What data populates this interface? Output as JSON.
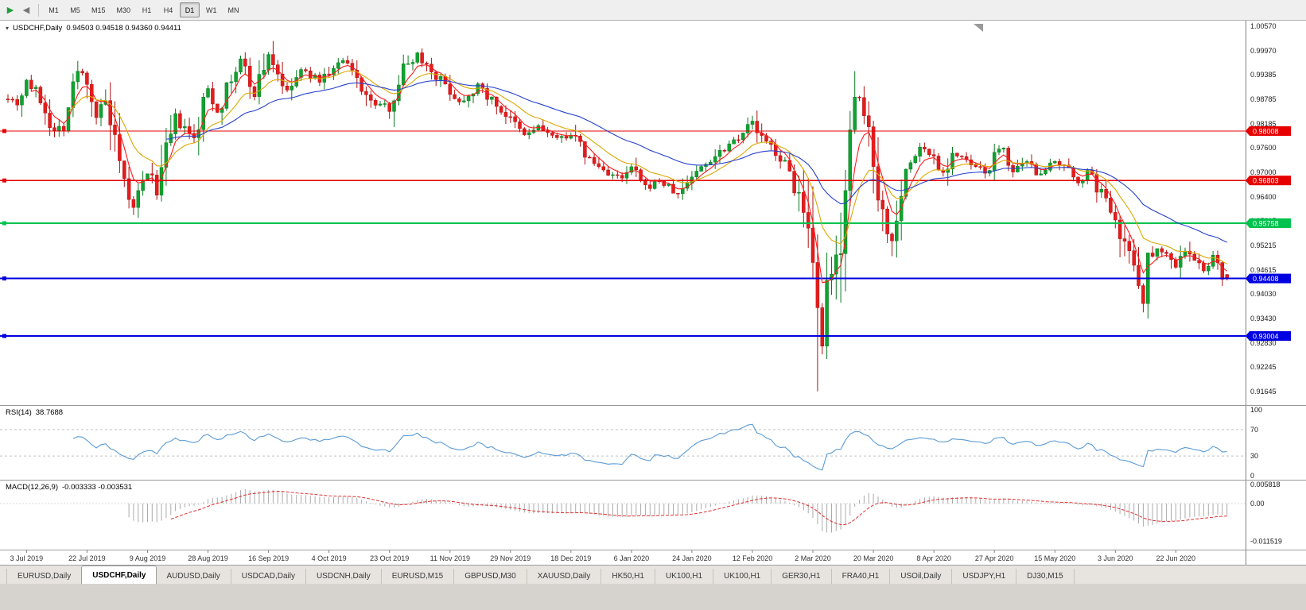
{
  "toolbar": {
    "timeframes": [
      {
        "label": "M1",
        "active": false
      },
      {
        "label": "M5",
        "active": false
      },
      {
        "label": "M15",
        "active": false
      },
      {
        "label": "M30",
        "active": false
      },
      {
        "label": "H1",
        "active": false
      },
      {
        "label": "H4",
        "active": false
      },
      {
        "label": "D1",
        "active": true
      },
      {
        "label": "W1",
        "active": false
      },
      {
        "label": "MN",
        "active": false
      }
    ]
  },
  "icons": {
    "chart_menu": "▾",
    "auto_scroll": "▶",
    "chart_shift": "◀"
  },
  "chart": {
    "header": "USDCHF,Daily",
    "ohlc_text": "0.94503 0.94518 0.94360 0.94411"
  },
  "rsi_panel": {
    "label": "RSI(14)",
    "value": "38.7688"
  },
  "macd_panel": {
    "label": "MACD(12,26,9)",
    "values": "-0.003333 -0.003531"
  },
  "tabs": [
    {
      "label": "EURUSD,Daily",
      "active": false
    },
    {
      "label": "USDCHF,Daily",
      "active": true
    },
    {
      "label": "AUDUSD,Daily",
      "active": false
    },
    {
      "label": "USDCAD,Daily",
      "active": false
    },
    {
      "label": "USDCNH,Daily",
      "active": false
    },
    {
      "label": "EURUSD,M15",
      "active": false
    },
    {
      "label": "GBPUSD,M30",
      "active": false
    },
    {
      "label": "XAUUSD,Daily",
      "active": false
    },
    {
      "label": "HK50,H1",
      "active": false
    },
    {
      "label": "UK100,H1",
      "active": false
    },
    {
      "label": "UK100,H1",
      "active": false
    },
    {
      "label": "GER30,H1",
      "active": false
    },
    {
      "label": "FRA40,H1",
      "active": false
    },
    {
      "label": "USOil,Daily",
      "active": false
    },
    {
      "label": "USDJPY,H1",
      "active": false
    },
    {
      "label": "DJ30,M15",
      "active": false
    }
  ],
  "chart_data": {
    "type": "candlestick",
    "symbol": "USDCHF",
    "period": "Daily",
    "bars": 263,
    "last_bar": {
      "open": 0.94503,
      "high": 0.94518,
      "low": 0.9436,
      "close": 0.94411
    },
    "up_color": "#0fa32f",
    "up_stroke": "#0a7a22",
    "down_color": "#e51c1c",
    "down_stroke": "#b01010",
    "close_path": [
      [
        0,
        0.9885
      ],
      [
        2,
        0.987
      ],
      [
        4,
        0.9925
      ],
      [
        7,
        0.988
      ],
      [
        10,
        0.98
      ],
      [
        12,
        0.982
      ],
      [
        15,
        0.9948
      ],
      [
        17,
        0.993
      ],
      [
        19,
        0.9838
      ],
      [
        21,
        0.987
      ],
      [
        24,
        0.97
      ],
      [
        27,
        0.9612
      ],
      [
        30,
        0.97
      ],
      [
        32,
        0.9655
      ],
      [
        36,
        0.983
      ],
      [
        40,
        0.9778
      ],
      [
        43,
        0.9905
      ],
      [
        45,
        0.985
      ],
      [
        50,
        0.9975
      ],
      [
        53,
        0.989
      ],
      [
        56,
        0.999
      ],
      [
        60,
        0.9895
      ],
      [
        63,
        0.9948
      ],
      [
        67,
        0.9925
      ],
      [
        72,
        0.9972
      ],
      [
        75,
        0.993
      ],
      [
        78,
        0.9868
      ],
      [
        82,
        0.9862
      ],
      [
        85,
        0.9955
      ],
      [
        88,
        0.999
      ],
      [
        91,
        0.995
      ],
      [
        95,
        0.99
      ],
      [
        97,
        0.9872
      ],
      [
        101,
        0.9912
      ],
      [
        106,
        0.9852
      ],
      [
        111,
        0.979
      ],
      [
        114,
        0.9812
      ],
      [
        118,
        0.978
      ],
      [
        121,
        0.9795
      ],
      [
        125,
        0.973
      ],
      [
        128,
        0.9705
      ],
      [
        132,
        0.9682
      ],
      [
        134,
        0.9712
      ],
      [
        137,
        0.9662
      ],
      [
        140,
        0.968
      ],
      [
        144,
        0.9645
      ],
      [
        147,
        0.9692
      ],
      [
        150,
        0.9722
      ],
      [
        154,
        0.9762
      ],
      [
        157,
        0.979
      ],
      [
        160,
        0.9822
      ],
      [
        162,
        0.9782
      ],
      [
        165,
        0.9752
      ],
      [
        168,
        0.97
      ],
      [
        170,
        0.964
      ],
      [
        172,
        0.952
      ],
      [
        174,
        0.933
      ],
      [
        175,
        0.928
      ],
      [
        176,
        0.939
      ],
      [
        178,
        0.948
      ],
      [
        179,
        0.956
      ],
      [
        180,
        0.97
      ],
      [
        182,
        0.9852
      ],
      [
        183,
        0.988
      ],
      [
        185,
        0.98
      ],
      [
        186,
        0.9748
      ],
      [
        188,
        0.96
      ],
      [
        190,
        0.9528
      ],
      [
        191,
        0.962
      ],
      [
        193,
        0.97
      ],
      [
        196,
        0.9762
      ],
      [
        199,
        0.9738
      ],
      [
        201,
        0.97
      ],
      [
        203,
        0.9748
      ],
      [
        207,
        0.9718
      ],
      [
        210,
        0.9698
      ],
      [
        212,
        0.9738
      ],
      [
        214,
        0.9762
      ],
      [
        216,
        0.97
      ],
      [
        219,
        0.9722
      ],
      [
        221,
        0.9698
      ],
      [
        225,
        0.9722
      ],
      [
        227,
        0.9712
      ],
      [
        230,
        0.9678
      ],
      [
        232,
        0.97
      ],
      [
        235,
        0.9648
      ],
      [
        238,
        0.9598
      ],
      [
        240,
        0.9528
      ],
      [
        243,
        0.9448
      ],
      [
        244,
        0.939
      ],
      [
        245,
        0.948
      ],
      [
        247,
        0.952
      ],
      [
        250,
        0.949
      ],
      [
        251,
        0.947
      ],
      [
        253,
        0.951
      ],
      [
        255,
        0.9482
      ],
      [
        257,
        0.9462
      ],
      [
        259,
        0.9492
      ],
      [
        261,
        0.945
      ],
      [
        262,
        0.94411
      ]
    ],
    "spike_lows": [
      [
        27,
        0.9596
      ],
      [
        174,
        0.9165
      ],
      [
        244,
        0.9358
      ]
    ],
    "levels": [
      {
        "price": 0.98008,
        "label": "0.98008",
        "color": "#e60000",
        "width": 1.4
      },
      {
        "price": 0.96803,
        "label": "0.96803",
        "color": "#e60000",
        "width": 1.4
      },
      {
        "price": 0.95758,
        "label": "0.95758",
        "color": "#00c24d",
        "width": 2
      },
      {
        "price": 0.94408,
        "label": "0.94408",
        "color": "#0000e0",
        "width": 2
      },
      {
        "price": 0.93004,
        "label": "0.93004",
        "color": "#0000e0",
        "width": 2
      }
    ],
    "moving_averages": [
      {
        "period": 5,
        "color": "#ff1a1a"
      },
      {
        "period": 13,
        "color": "#dba800"
      },
      {
        "period": 34,
        "color": "#2742cc"
      }
    ],
    "price_axis_ticks": [
      "1.00570",
      "0.99970",
      "0.99385",
      "0.98785",
      "0.98185",
      "0.97600",
      "0.97000",
      "0.96400",
      "0.95815",
      "0.95215",
      "0.94615",
      "0.94030",
      "0.93430",
      "0.92830",
      "0.92245",
      "0.91645"
    ],
    "date_labels": [
      "3 Jul 2019",
      "22 Jul 2019",
      "9 Aug 2019",
      "28 Aug 2019",
      "16 Sep 2019",
      "4 Oct 2019",
      "23 Oct 2019",
      "11 Nov 2019",
      "29 Nov 2019",
      "18 Dec 2019",
      "6 Jan 2020",
      "24 Jan 2020",
      "12 Feb 2020",
      "2 Mar 2020",
      "20 Mar 2020",
      "8 Apr 2020",
      "27 Apr 2020",
      "15 May 2020",
      "3 Jun 2020",
      "22 Jun 2020"
    ],
    "rsi": {
      "period": 14,
      "value": 38.7688,
      "levels": [
        70,
        30
      ],
      "axis_labels": [
        "100",
        "70",
        "30",
        "0"
      ],
      "color": "#5b9bd5"
    },
    "macd": {
      "fast": 12,
      "slow": 26,
      "signal": 9,
      "main_value": -0.003333,
      "signal_value": -0.003531,
      "axis_labels": [
        "0.005818",
        "0.00",
        "-0.011519"
      ],
      "histogram_color": "#ababab",
      "signal_color": "#e03030"
    }
  }
}
